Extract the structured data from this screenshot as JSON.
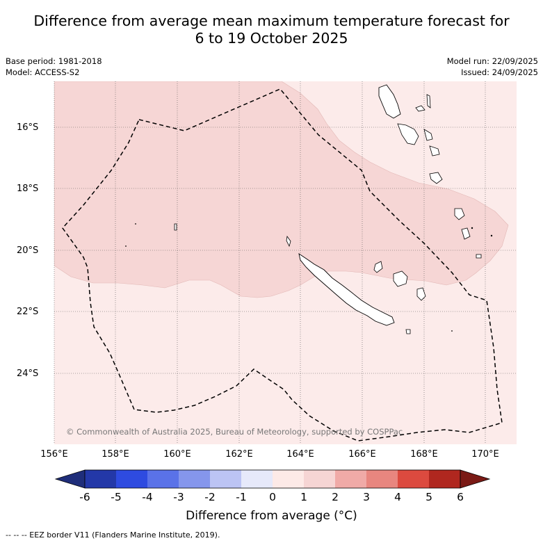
{
  "title_line1": "Difference from average mean maximum temperature forecast for",
  "title_line2": "6 to 19 October 2025",
  "base_period": "Base period: 1981-2018",
  "model": "Model: ACCESS-S2",
  "model_run": "Model run: 22/09/2025",
  "issued": "Issued: 24/09/2025",
  "copyright": "© Commonwealth of Australia 2025, Bureau of Meteorology, supported by COSPPac",
  "lat_labels": [
    "16°S",
    "18°S",
    "20°S",
    "22°S",
    "24°S"
  ],
  "lon_labels": [
    "156°E",
    "158°E",
    "160°E",
    "162°E",
    "164°E",
    "166°E",
    "168°E",
    "170°E"
  ],
  "colorbar": {
    "title": "Difference from average (°C)",
    "ticks": [
      "-6",
      "-5",
      "-4",
      "-3",
      "-2",
      "-1",
      "0",
      "1",
      "2",
      "3",
      "4",
      "5",
      "6"
    ],
    "colors": [
      "#1f2e7a",
      "#2338a8",
      "#2e4be0",
      "#5a72e8",
      "#8596ec",
      "#bcc4f4",
      "#e6e9fa",
      "#fdeae7",
      "#f6d5d4",
      "#f0aaa7",
      "#e8867f",
      "#dc4a3f",
      "#b0271f",
      "#7a1a15"
    ]
  },
  "map": {
    "region_colors": {
      "light": "#fcebea",
      "medium": "#f6d6d5"
    },
    "legend_note": "--  --  -- EEZ border V11 (Flanders Marine Institute, 2019)."
  }
}
